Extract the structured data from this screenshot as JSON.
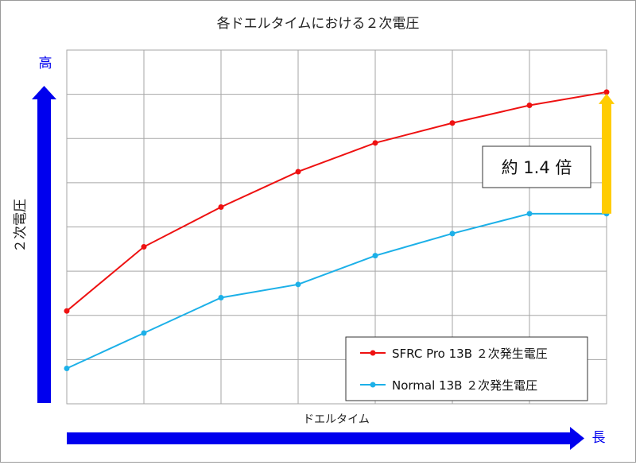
{
  "chart_data": {
    "type": "line",
    "title": "各ドエルタイムにおける２次電圧",
    "xlabel": "ドエルタイム",
    "ylabel": "２次電圧",
    "y_high_label": "高",
    "x_long_label": "長",
    "grid": true,
    "legend_position": "bottom-right",
    "x": [
      1,
      2,
      3,
      4,
      5,
      6,
      7,
      8
    ],
    "xlim": [
      1,
      8
    ],
    "ylim": [
      0,
      8
    ],
    "series": [
      {
        "name": "SFRC Pro 13B ２次発生電圧",
        "color": "#ee1111",
        "values": [
          2.1,
          3.55,
          4.45,
          5.25,
          5.9,
          6.35,
          6.75,
          7.05
        ]
      },
      {
        "name": "Normal 13B ２次発生電圧",
        "color": "#1cb0e8",
        "values": [
          0.8,
          1.6,
          2.4,
          2.7,
          3.35,
          3.85,
          4.3,
          4.3
        ]
      }
    ],
    "annotation": {
      "text": "約 1.4 倍",
      "arrow_color": "#ffcc00"
    },
    "axis_arrow_color": "#0000ee"
  }
}
